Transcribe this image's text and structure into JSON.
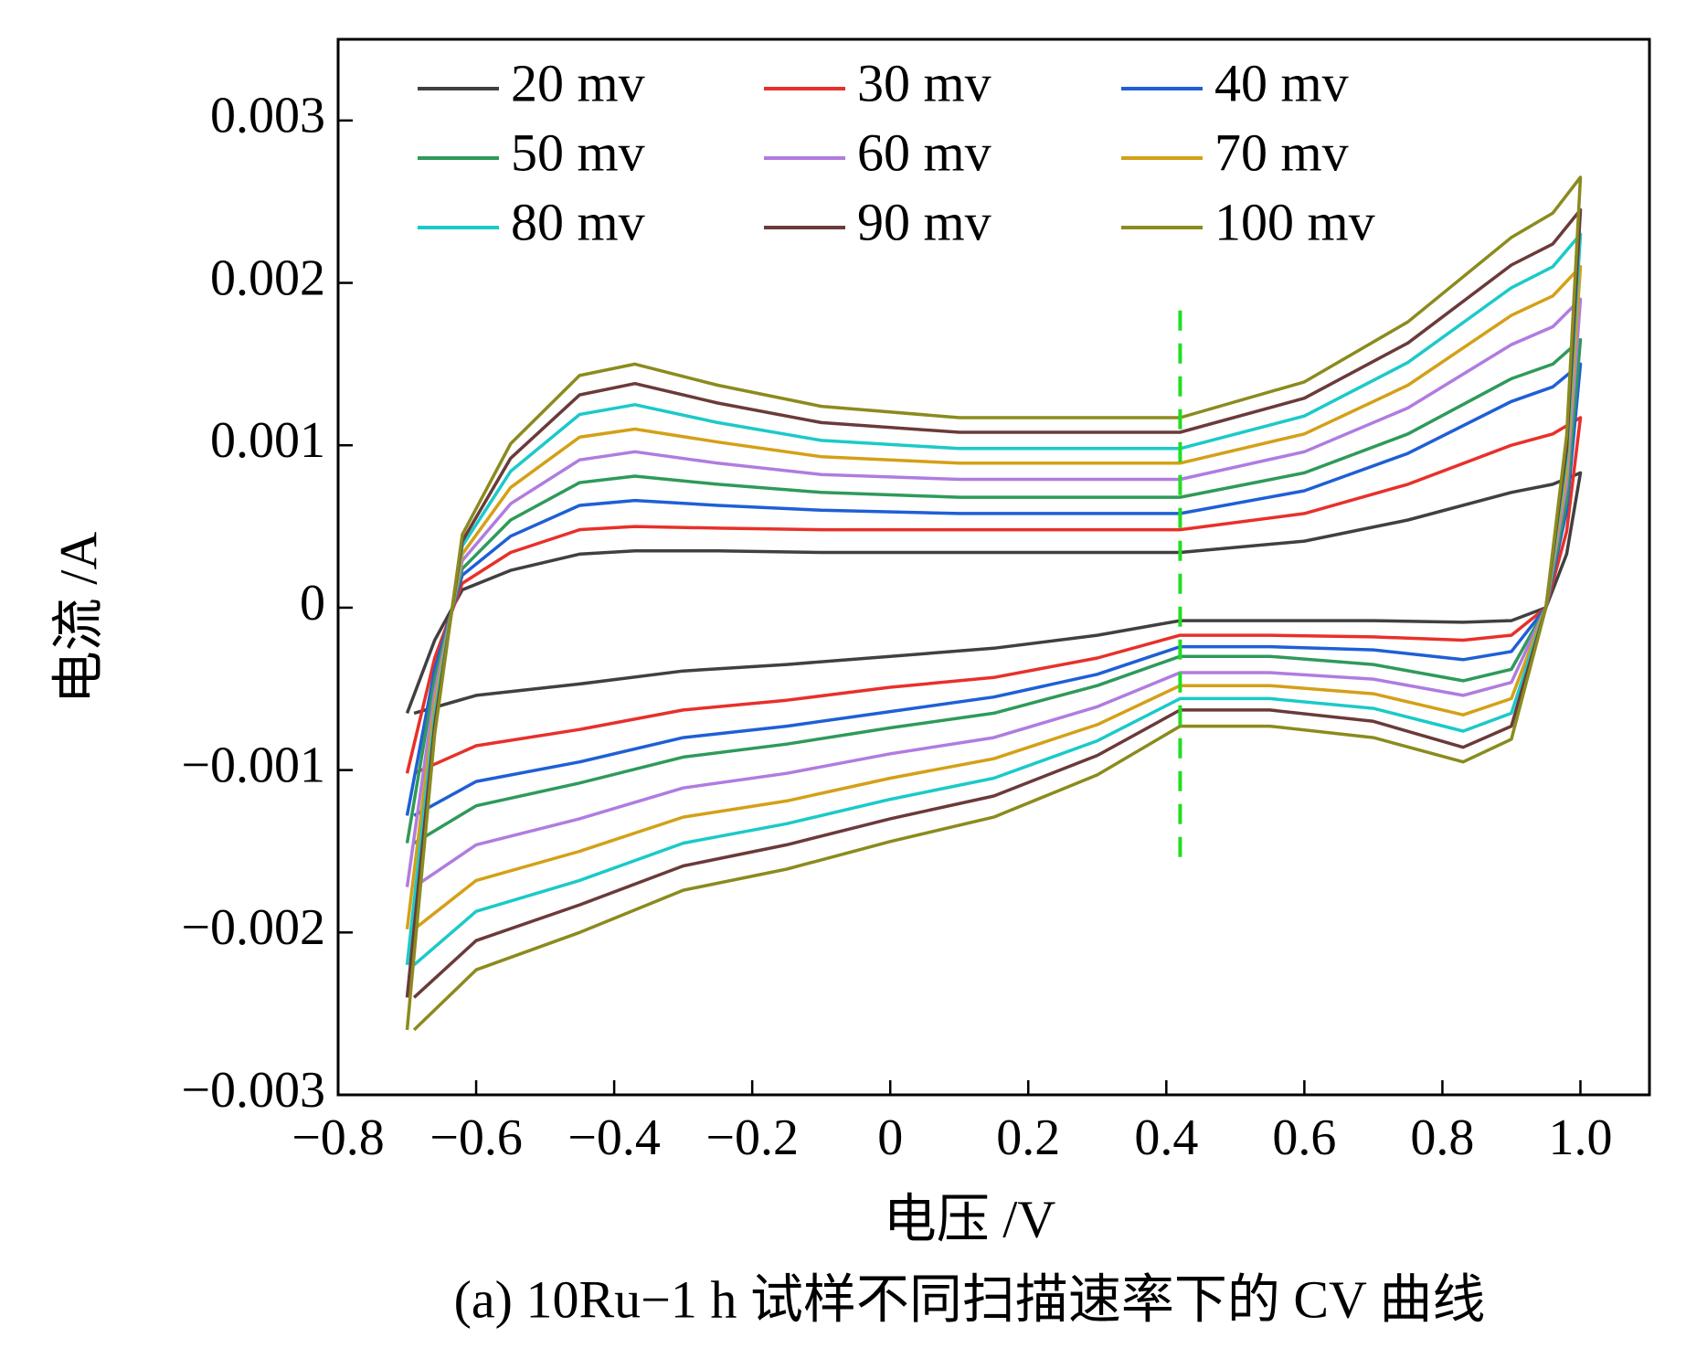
{
  "chart_data": {
    "type": "line",
    "caption": "(a) 10Ru−1 h 试样不同扫描速率下的 CV 曲线",
    "x_label": "电压 /V",
    "y_label": "电流 /A",
    "xlim": [
      -0.8,
      1.1
    ],
    "ylim": [
      -0.003,
      0.0035
    ],
    "xticks": [
      {
        "value": -0.8,
        "label": "−0.8"
      },
      {
        "value": -0.6,
        "label": "−0.6"
      },
      {
        "value": -0.4,
        "label": "−0.4"
      },
      {
        "value": -0.2,
        "label": "−0.2"
      },
      0,
      0.2,
      0.4,
      0.6,
      0.8,
      {
        "value": 1.0,
        "label": "1.0"
      }
    ],
    "yticks": [
      {
        "value": -0.003,
        "label": "−0.003"
      },
      {
        "value": -0.002,
        "label": "−0.002"
      },
      {
        "value": -0.001,
        "label": "−0.001"
      },
      0,
      0.001,
      0.002,
      0.003
    ],
    "legend": "top",
    "marker_line": {
      "x": 0.42,
      "y": [
        0.00183,
        -0.00159
      ],
      "color": "#22dd22"
    },
    "x": [
      -0.7,
      -0.66,
      -0.62,
      -0.55,
      -0.45,
      -0.37,
      -0.25,
      -0.1,
      0.1,
      0.3,
      0.42,
      0.6,
      0.75,
      0.9,
      0.96,
      1.0,
      0.98,
      0.95,
      0.9,
      0.83,
      0.7,
      0.55,
      0.42,
      0.3,
      0.15,
      0,
      -0.15,
      -0.3,
      -0.45,
      -0.6,
      -0.69
    ],
    "series": [
      {
        "name": "20 mv",
        "color": "#404040",
        "values": [
          -0.00065,
          -0.0002,
          0.00011,
          0.00023,
          0.00033,
          0.00035,
          0.00035,
          0.00034,
          0.00034,
          0.00034,
          0.00034,
          0.00041,
          0.00054,
          0.00071,
          0.00076,
          0.00083,
          0.00033,
          0,
          -8e-05,
          -9e-05,
          -8e-05,
          -8e-05,
          -8e-05,
          -0.00017,
          -0.00025,
          -0.0003,
          -0.00035,
          -0.00039,
          -0.00047,
          -0.00054,
          -0.00065
        ]
      },
      {
        "name": "30 mv",
        "color": "#e8302a",
        "values": [
          -0.00102,
          -0.00031,
          0.00015,
          0.00034,
          0.00048,
          0.0005,
          0.00049,
          0.00048,
          0.00048,
          0.00048,
          0.00048,
          0.00058,
          0.00076,
          0.001,
          0.00107,
          0.00117,
          0.00047,
          0,
          -0.00017,
          -0.0002,
          -0.00018,
          -0.00017,
          -0.00017,
          -0.00031,
          -0.00043,
          -0.00049,
          -0.00057,
          -0.00063,
          -0.00075,
          -0.00085,
          -0.00102
        ]
      },
      {
        "name": "40 mv",
        "color": "#1f5fd6",
        "values": [
          -0.00128,
          -0.00038,
          0.0002,
          0.00044,
          0.00063,
          0.00066,
          0.00063,
          0.0006,
          0.00058,
          0.00058,
          0.00058,
          0.00072,
          0.00095,
          0.00127,
          0.00136,
          0.0015,
          0.0006,
          0,
          -0.00027,
          -0.00032,
          -0.00026,
          -0.00024,
          -0.00024,
          -0.00041,
          -0.00055,
          -0.00064,
          -0.00073,
          -0.0008,
          -0.00095,
          -0.00107,
          -0.00128
        ]
      },
      {
        "name": "50 mv",
        "color": "#2e9a5a",
        "values": [
          -0.00145,
          -0.00044,
          0.00024,
          0.00054,
          0.00077,
          0.00081,
          0.00076,
          0.00071,
          0.00068,
          0.00068,
          0.00068,
          0.00083,
          0.00107,
          0.00141,
          0.0015,
          0.00165,
          0.00066,
          0,
          -0.00038,
          -0.00045,
          -0.00035,
          -0.0003,
          -0.0003,
          -0.00048,
          -0.00065,
          -0.00074,
          -0.00084,
          -0.00092,
          -0.00108,
          -0.00122,
          -0.00145
        ]
      },
      {
        "name": "60 mv",
        "color": "#b07ce0",
        "values": [
          -0.00172,
          -0.00052,
          0.00029,
          0.00064,
          0.00091,
          0.00096,
          0.00089,
          0.00082,
          0.00079,
          0.00079,
          0.00079,
          0.00096,
          0.00123,
          0.00162,
          0.00173,
          0.0019,
          0.00076,
          0,
          -0.00046,
          -0.00054,
          -0.00044,
          -0.0004,
          -0.0004,
          -0.00061,
          -0.0008,
          -0.0009,
          -0.00102,
          -0.00111,
          -0.0013,
          -0.00146,
          -0.00172
        ]
      },
      {
        "name": "70 mv",
        "color": "#d4a017",
        "values": [
          -0.00198,
          -0.00059,
          0.00033,
          0.00074,
          0.00105,
          0.0011,
          0.00102,
          0.00093,
          0.00089,
          0.00089,
          0.00089,
          0.00107,
          0.00137,
          0.0018,
          0.00192,
          0.0021,
          0.00084,
          0,
          -0.00056,
          -0.00066,
          -0.00053,
          -0.00048,
          -0.00048,
          -0.00072,
          -0.00093,
          -0.00105,
          -0.00119,
          -0.00129,
          -0.0015,
          -0.00168,
          -0.00198
        ]
      },
      {
        "name": "80 mv",
        "color": "#1cc9c9",
        "values": [
          -0.0022,
          -0.00066,
          0.00038,
          0.00084,
          0.00119,
          0.00125,
          0.00114,
          0.00103,
          0.00098,
          0.00098,
          0.00098,
          0.00118,
          0.00151,
          0.00197,
          0.0021,
          0.0023,
          0.00092,
          0,
          -0.00065,
          -0.00076,
          -0.00062,
          -0.00056,
          -0.00056,
          -0.00082,
          -0.00105,
          -0.00118,
          -0.00133,
          -0.00145,
          -0.00168,
          -0.00187,
          -0.0022
        ]
      },
      {
        "name": "90 mv",
        "color": "#6b3a3a",
        "values": [
          -0.0024,
          -0.00072,
          0.00041,
          0.00092,
          0.00131,
          0.00138,
          0.00126,
          0.00114,
          0.00108,
          0.00108,
          0.00108,
          0.00129,
          0.00163,
          0.00211,
          0.00224,
          0.00245,
          0.00098,
          0,
          -0.00073,
          -0.00086,
          -0.0007,
          -0.00063,
          -0.00063,
          -0.00091,
          -0.00116,
          -0.0013,
          -0.00146,
          -0.00159,
          -0.00183,
          -0.00205,
          -0.0024
        ]
      },
      {
        "name": "100 mv",
        "color": "#8b8b1e",
        "values": [
          -0.0026,
          -0.00078,
          0.00045,
          0.00101,
          0.00143,
          0.0015,
          0.00137,
          0.00124,
          0.00117,
          0.00117,
          0.00117,
          0.00139,
          0.00176,
          0.00228,
          0.00243,
          0.00265,
          0.00106,
          0,
          -0.00081,
          -0.00095,
          -0.0008,
          -0.00073,
          -0.00073,
          -0.00103,
          -0.00129,
          -0.00144,
          -0.00161,
          -0.00174,
          -0.002,
          -0.00223,
          -0.0026
        ]
      }
    ]
  }
}
